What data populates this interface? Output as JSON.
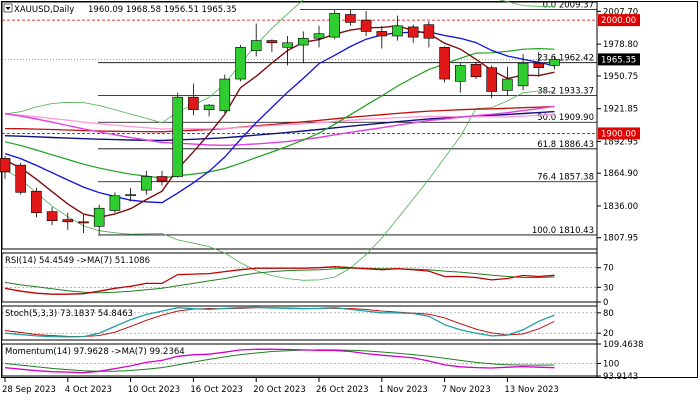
{
  "chart_data": {
    "type": "candlestick",
    "symbol_header": "XAUUSD,Daily",
    "ohlc_header": "1960.09 1968.58 1956.51 1965.35",
    "price_axis": {
      "range": [
        1798,
        2016
      ],
      "ticks": [
        "2007.70",
        "1978.80",
        "1950.75",
        "1921.85",
        "1892.95",
        "1864.90",
        "1836.00",
        "1807.95"
      ],
      "tick_values": [
        2007.7,
        1978.8,
        1950.75,
        1921.85,
        1892.95,
        1864.9,
        1836.0,
        1807.95
      ]
    },
    "price_badges": [
      {
        "text": "2000.00",
        "value": 2000.0,
        "color": "#e00000"
      },
      {
        "text": "1965.35",
        "value": 1965.35,
        "color": "#000000"
      },
      {
        "text": "1900.00",
        "value": 1900.0,
        "color": "#e00000"
      }
    ],
    "fib_levels": [
      {
        "label": "0.0 2009.37",
        "value": 2009.37
      },
      {
        "label": "23.6 1962.42",
        "value": 1962.42
      },
      {
        "label": "38.2 1933.37",
        "value": 1933.37
      },
      {
        "label": "50.0 1909.90",
        "value": 1909.9
      },
      {
        "label": "61.8 1886.43",
        "value": 1886.43
      },
      {
        "label": "76.4 1857.38",
        "value": 1857.38
      },
      {
        "label": "100.0 1810.43",
        "value": 1810.43
      }
    ],
    "date_labels": [
      {
        "text": "28 Sep 2023",
        "index": 0
      },
      {
        "text": "4 Oct 2023",
        "index": 4
      },
      {
        "text": "10 Oct 2023",
        "index": 8
      },
      {
        "text": "16 Oct 2023",
        "index": 12
      },
      {
        "text": "20 Oct 2023",
        "index": 16
      },
      {
        "text": "26 Oct 2023",
        "index": 20
      },
      {
        "text": "1 Nov 2023",
        "index": 24
      },
      {
        "text": "7 Nov 2023",
        "index": 28
      },
      {
        "text": "13 Nov 2023",
        "index": 32
      }
    ],
    "candles": [
      {
        "o": 1878,
        "h": 1880,
        "l": 1860,
        "c": 1866
      },
      {
        "o": 1872,
        "h": 1874,
        "l": 1846,
        "c": 1848
      },
      {
        "o": 1849,
        "h": 1852,
        "l": 1826,
        "c": 1830
      },
      {
        "o": 1831,
        "h": 1835,
        "l": 1819,
        "c": 1823
      },
      {
        "o": 1824,
        "h": 1830,
        "l": 1815,
        "c": 1822
      },
      {
        "o": 1822,
        "h": 1828,
        "l": 1812,
        "c": 1821
      },
      {
        "o": 1818,
        "h": 1837,
        "l": 1811,
        "c": 1834
      },
      {
        "o": 1832,
        "h": 1848,
        "l": 1830,
        "c": 1845
      },
      {
        "o": 1845,
        "h": 1852,
        "l": 1840,
        "c": 1846
      },
      {
        "o": 1850,
        "h": 1867,
        "l": 1846,
        "c": 1862
      },
      {
        "o": 1862,
        "h": 1867,
        "l": 1854,
        "c": 1858
      },
      {
        "o": 1862,
        "h": 1936,
        "l": 1861,
        "c": 1932
      },
      {
        "o": 1932,
        "h": 1944,
        "l": 1916,
        "c": 1921
      },
      {
        "o": 1921,
        "h": 1926,
        "l": 1915,
        "c": 1925
      },
      {
        "o": 1920,
        "h": 1952,
        "l": 1918,
        "c": 1948
      },
      {
        "o": 1948,
        "h": 1978,
        "l": 1946,
        "c": 1976
      },
      {
        "o": 1973,
        "h": 1997,
        "l": 1968,
        "c": 1982
      },
      {
        "o": 1982,
        "h": 1983,
        "l": 1972,
        "c": 1980
      },
      {
        "o": 1976,
        "h": 1986,
        "l": 1960,
        "c": 1980
      },
      {
        "o": 1978,
        "h": 1990,
        "l": 1962,
        "c": 1984
      },
      {
        "o": 1984,
        "h": 1995,
        "l": 1976,
        "c": 1988
      },
      {
        "o": 1985,
        "h": 2009,
        "l": 1983,
        "c": 2006
      },
      {
        "o": 2005,
        "h": 2009,
        "l": 1995,
        "c": 1998
      },
      {
        "o": 2000,
        "h": 2008,
        "l": 1986,
        "c": 1990
      },
      {
        "o": 1990,
        "h": 1995,
        "l": 1975,
        "c": 1986
      },
      {
        "o": 1986,
        "h": 2004,
        "l": 1982,
        "c": 1995
      },
      {
        "o": 1994,
        "h": 1996,
        "l": 1980,
        "c": 1985
      },
      {
        "o": 1996,
        "h": 1999,
        "l": 1976,
        "c": 1984
      },
      {
        "o": 1976,
        "h": 1977,
        "l": 1945,
        "c": 1948
      },
      {
        "o": 1946,
        "h": 1962,
        "l": 1936,
        "c": 1960
      },
      {
        "o": 1961,
        "h": 1963,
        "l": 1948,
        "c": 1950
      },
      {
        "o": 1958,
        "h": 1960,
        "l": 1931,
        "c": 1937
      },
      {
        "o": 1938,
        "h": 1959,
        "l": 1933,
        "c": 1948
      },
      {
        "o": 1942,
        "h": 1970,
        "l": 1938,
        "c": 1962
      },
      {
        "o": 1962,
        "h": 1972,
        "l": 1950,
        "c": 1958
      },
      {
        "o": 1960.09,
        "h": 1968.58,
        "l": 1956.51,
        "c": 1965.35
      }
    ],
    "rsi": {
      "header": "RSI(14) 54.4549  ->MA(7) 51.1086",
      "ticks": [
        "70",
        "30",
        "0"
      ],
      "tick_values": [
        70,
        30,
        0
      ],
      "values": [
        28,
        22,
        18,
        16,
        16,
        17,
        22,
        28,
        32,
        38,
        38,
        56,
        57,
        58,
        62,
        66,
        69,
        69,
        69,
        69,
        70,
        72,
        70,
        68,
        66,
        68,
        66,
        63,
        52,
        52,
        50,
        45,
        48,
        54,
        52,
        54.45
      ],
      "ma_values": [
        40,
        35,
        31,
        27,
        23,
        20,
        19,
        20,
        22,
        25,
        28,
        33,
        38,
        43,
        48,
        54,
        59,
        62,
        64,
        65,
        66,
        68,
        69,
        69,
        68,
        68,
        67,
        66,
        63,
        61,
        58,
        55,
        52,
        50,
        50,
        51.11
      ]
    },
    "stoch": {
      "header": "Stoch(5,3,3) 73.1837  54.8463",
      "ticks": [
        "80",
        "20"
      ],
      "tick_values": [
        80,
        20
      ],
      "k_values": [
        20,
        16,
        12,
        10,
        9,
        10,
        20,
        40,
        60,
        75,
        85,
        95,
        92,
        90,
        93,
        95,
        96,
        94,
        93,
        92,
        93,
        95,
        90,
        85,
        80,
        80,
        78,
        70,
        45,
        30,
        20,
        12,
        14,
        30,
        55,
        73.18
      ],
      "d_values": [
        28,
        22,
        16,
        13,
        11,
        10,
        13,
        23,
        40,
        58,
        73,
        85,
        91,
        93,
        92,
        93,
        95,
        95,
        94,
        93,
        93,
        93,
        93,
        90,
        85,
        82,
        79,
        76,
        65,
        48,
        32,
        21,
        15,
        18,
        33,
        54.85
      ]
    },
    "momentum": {
      "header": "Momentum(14) 97.9628  ->MA(7) 99.2364",
      "ticks": [
        "109.4638",
        "100",
        "93.9143"
      ],
      "tick_values": [
        109.4638,
        100,
        93.9143
      ],
      "values": [
        98.0,
        97.2,
        96.5,
        96.0,
        95.8,
        95.5,
        96.2,
        97.5,
        98.8,
        100.5,
        101.5,
        103.5,
        104.2,
        104.5,
        105.5,
        106.6,
        106.9,
        106.9,
        106.8,
        106.6,
        106.4,
        106.3,
        105.8,
        104.8,
        104.0,
        103.4,
        102.7,
        101.2,
        99.3,
        98.4,
        98.0,
        97.8,
        98.2,
        98.5,
        98.2,
        97.96
      ],
      "ma_values": [
        100.0,
        99.2,
        98.4,
        97.6,
        97.0,
        96.5,
        96.2,
        96.2,
        96.6,
        97.2,
        98.0,
        99.3,
        100.7,
        102.0,
        103.2,
        104.3,
        105.1,
        105.8,
        106.2,
        106.5,
        106.6,
        106.6,
        106.4,
        106.1,
        105.6,
        105.0,
        104.3,
        103.5,
        102.5,
        101.5,
        100.5,
        99.8,
        99.4,
        99.2,
        99.2,
        99.24
      ]
    },
    "grid": false,
    "legend": "none"
  },
  "colors": {
    "bull": "#2fcd2f",
    "bear": "#e01818",
    "ma_fast": "#7a0e0e",
    "ma_mid": "#1010e0",
    "ma_slow": "#20a020",
    "ma_long": "#101080",
    "ma_pink": "#e040e0",
    "ma_lpink": "#ff9ad8",
    "ma_dred": "#c01010",
    "bollinger": "#4caf50",
    "rsi_line": "#c00000",
    "rsi_ma": "#208020",
    "stoch_k": "#20a0a0",
    "stoch_d": "#c00000",
    "mom_line": "#d000d0",
    "mom_ma": "#208020"
  }
}
